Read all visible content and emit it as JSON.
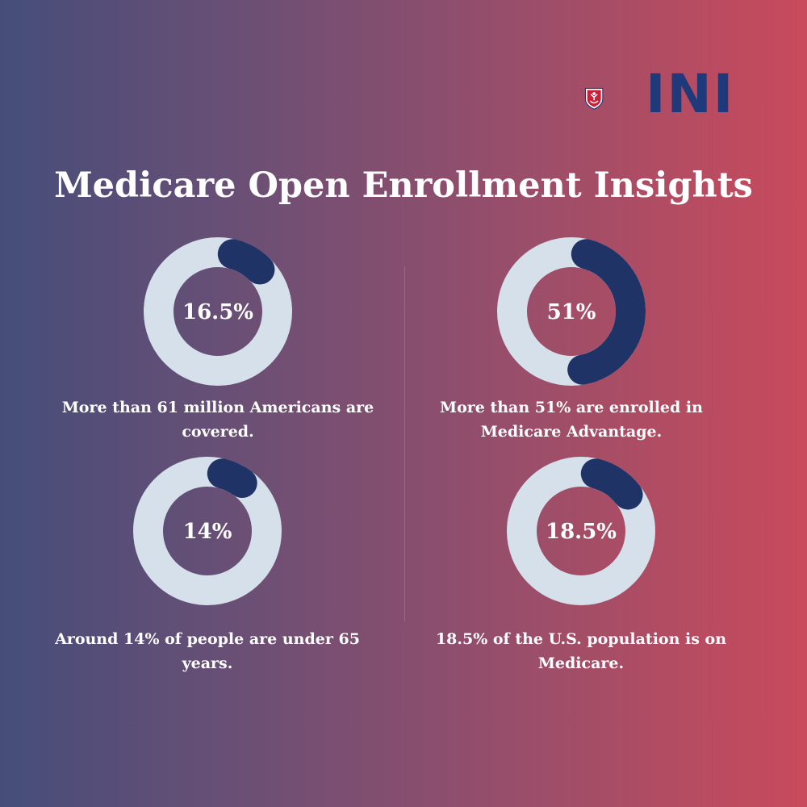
{
  "logo": {
    "text": "INI",
    "shield_color": "#c8213a"
  },
  "title": "Medicare Open Enrollment Insights",
  "colors": {
    "track": "#d5e0ea",
    "fill": "#1f3366"
  },
  "chart_data": {
    "type": "donut",
    "items": [
      {
        "label": "16.5%",
        "value": 16.5,
        "caption": "More than 61 million Americans are covered."
      },
      {
        "label": "51%",
        "value": 51,
        "caption": "More than 51% are enrolled in Medicare Advantage."
      },
      {
        "label": "14%",
        "value": 14,
        "caption": "Around 14% of people are under 65 years."
      },
      {
        "label": "18.5%",
        "value": 18.5,
        "caption": "18.5% of the U.S. population is on Medicare."
      }
    ]
  }
}
